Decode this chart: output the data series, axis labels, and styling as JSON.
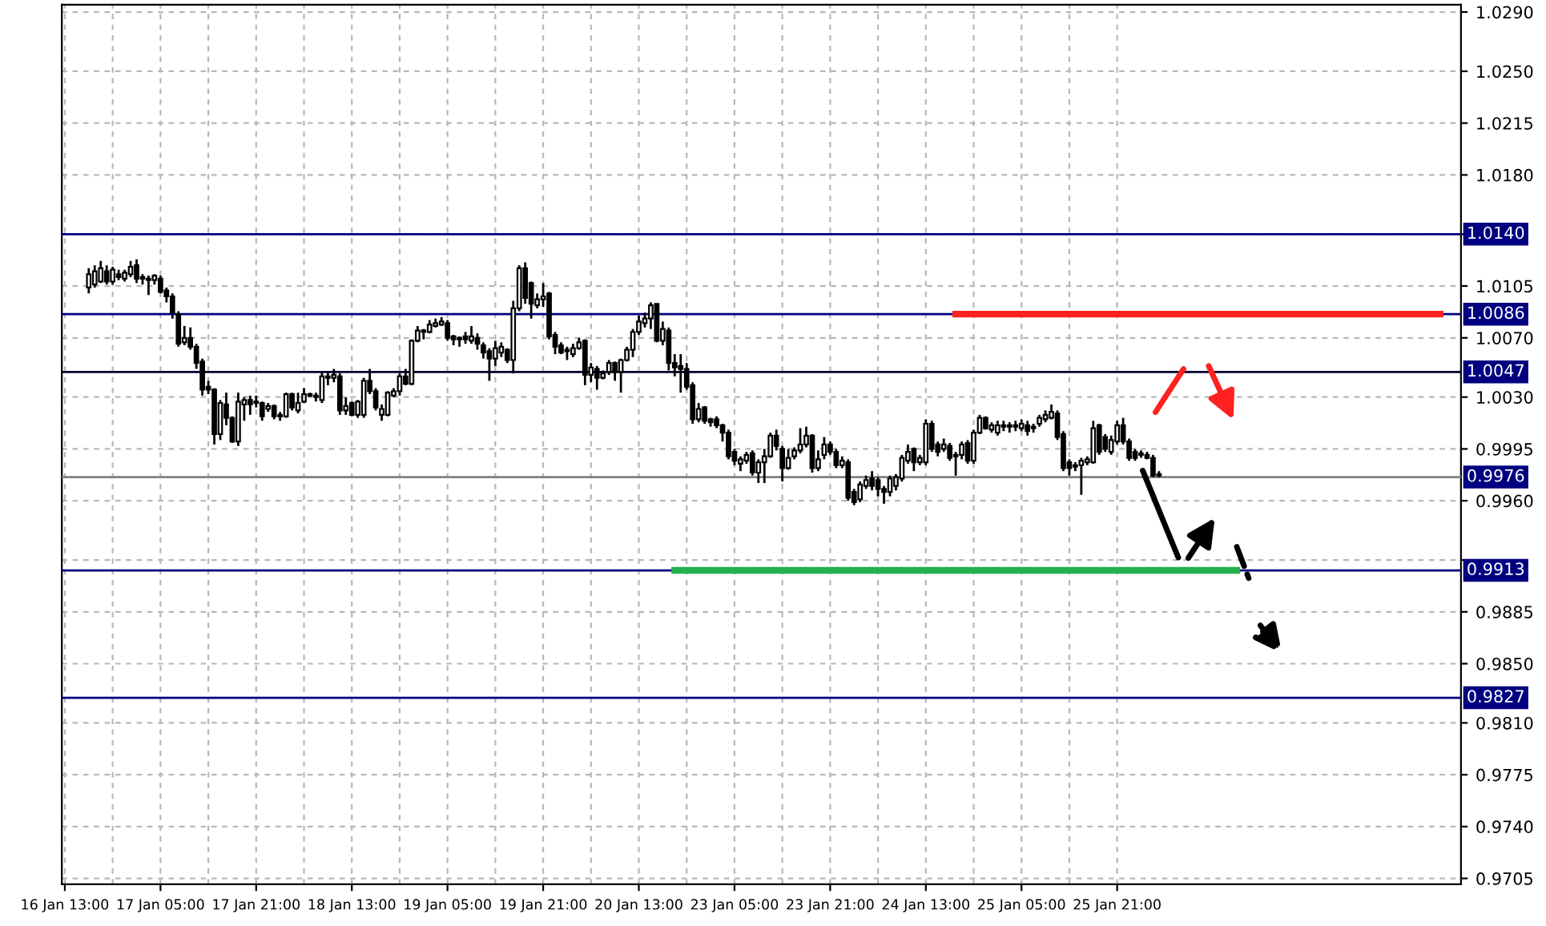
{
  "chart_data": {
    "type": "candlestick",
    "categories": [
      "16 Jan 13:00",
      null,
      null,
      null,
      null,
      null,
      null,
      null,
      null,
      null,
      null,
      null,
      null,
      null,
      null,
      null,
      "17 Jan 05:00",
      null,
      null,
      null,
      null,
      null,
      null,
      null,
      null,
      null,
      null,
      null,
      null,
      null,
      null,
      null,
      "17 Jan 21:00",
      null,
      null,
      null,
      null,
      null,
      null,
      null,
      null,
      null,
      null,
      null,
      null,
      null,
      null,
      null,
      "18 Jan 13:00",
      null,
      null,
      null,
      null,
      null,
      null,
      null,
      null,
      null,
      null,
      null,
      null,
      null,
      null,
      null,
      "19 Jan 05:00",
      null,
      null,
      null,
      null,
      null,
      null,
      null,
      null,
      null,
      null,
      null,
      null,
      null,
      null,
      null,
      "19 Jan 21:00",
      null,
      null,
      null,
      null,
      null,
      null,
      null,
      null,
      null,
      null,
      null,
      null,
      null,
      null,
      null,
      "20 Jan 13:00",
      null,
      null,
      null,
      null,
      null,
      null,
      null,
      null,
      null,
      null,
      null,
      null,
      null,
      null,
      null,
      "23 Jan 05:00",
      null,
      null,
      null,
      null,
      null,
      null,
      null,
      null,
      null,
      null,
      null,
      null,
      null,
      null,
      null,
      "23 Jan 21:00",
      null,
      null,
      null,
      null,
      null,
      null,
      null,
      null,
      null,
      null,
      null,
      null,
      null,
      null,
      null,
      "24 Jan 13:00",
      null,
      null,
      null,
      null,
      null,
      null,
      null,
      null,
      null,
      null,
      null,
      null,
      null,
      null,
      null,
      "25 Jan 05:00",
      null,
      null,
      null,
      null,
      null,
      null,
      null,
      null,
      null,
      null,
      null,
      null,
      null,
      null,
      null,
      "25 Jan 21:00",
      null,
      null,
      null,
      null,
      null,
      null,
      null,
      null,
      null,
      null,
      null,
      null,
      null,
      null,
      null,
      null,
      null,
      null,
      null,
      null,
      null,
      null,
      null,
      null,
      null,
      null,
      null,
      null,
      null,
      null,
      null,
      null,
      null,
      null,
      null,
      null,
      null,
      null,
      null,
      null,
      null,
      null,
      null,
      null,
      null,
      null,
      null,
      null,
      null,
      null,
      null,
      null,
      null,
      null,
      null,
      null,
      null
    ],
    "ohlc": [
      null,
      null,
      null,
      null,
      [
        1.0104,
        1.0117,
        1.01,
        1.0113
      ],
      [
        1.0106,
        1.0119,
        1.0104,
        1.0115
      ],
      [
        1.0108,
        1.0122,
        1.0107,
        1.0117
      ],
      [
        1.0115,
        1.0119,
        1.0106,
        1.0108
      ],
      [
        1.0108,
        1.0118,
        1.0106,
        1.0116
      ],
      [
        1.0113,
        1.0116,
        1.0109,
        1.0111
      ],
      [
        1.011,
        1.0116,
        1.0108,
        1.0114
      ],
      [
        1.0113,
        1.0122,
        1.0111,
        1.0118
      ],
      [
        1.0119,
        1.0123,
        1.0107,
        1.011
      ],
      [
        1.0111,
        1.0113,
        1.0106,
        1.011
      ],
      [
        1.011,
        1.0112,
        1.0099,
        1.0109
      ],
      [
        1.0109,
        1.0113,
        1.0106,
        1.0112
      ],
      [
        1.011,
        1.0112,
        1.01,
        1.0101
      ],
      [
        1.0102,
        1.0104,
        1.0094,
        1.0098
      ],
      [
        1.0098,
        1.01,
        1.0083,
        1.0087
      ],
      [
        1.0086,
        1.0088,
        1.0064,
        1.0066
      ],
      [
        1.0067,
        1.0078,
        1.0065,
        1.007
      ],
      [
        1.007,
        1.0077,
        1.0062,
        1.0064
      ],
      [
        1.0064,
        1.0066,
        1.0049,
        1.0053
      ],
      [
        1.0054,
        1.0056,
        1.0031,
        1.0035
      ],
      [
        1.0037,
        1.0041,
        1.0032,
        1.0035
      ],
      [
        1.0035,
        1.0036,
        0.9998,
        1.0005
      ],
      [
        1.0005,
        1.0028,
        1.0001,
        1.0026
      ],
      [
        1.0025,
        1.0033,
        1.0011,
        1.0016
      ],
      [
        1.0016,
        1.0017,
        0.9999,
        1.0
      ],
      [
        1.0,
        1.0033,
        0.9997,
        1.0027
      ],
      [
        1.0025,
        1.003,
        1.0014,
        1.0028
      ],
      [
        1.0028,
        1.0031,
        1.0018,
        1.0025
      ],
      [
        1.0027,
        1.0031,
        1.0023,
        1.0026
      ],
      [
        1.0026,
        1.0027,
        1.0014,
        1.0017
      ],
      [
        1.0022,
        1.0026,
        1.002,
        1.0024
      ],
      [
        1.0024,
        1.0025,
        1.0015,
        1.0017
      ],
      [
        1.0018,
        1.002,
        1.0014,
        1.0017
      ],
      [
        1.0017,
        1.0033,
        1.0016,
        1.0032
      ],
      [
        1.0032,
        1.0033,
        1.0021,
        1.0023
      ],
      [
        1.0021,
        1.0033,
        1.0019,
        1.0026
      ],
      [
        1.0027,
        1.0036,
        1.0026,
        1.0032
      ],
      [
        1.0032,
        1.0033,
        1.003,
        1.0031
      ],
      [
        1.0031,
        1.0033,
        1.0027,
        1.003
      ],
      [
        1.0028,
        1.0047,
        1.0026,
        1.0044
      ],
      [
        1.0044,
        1.0047,
        1.0038,
        1.0043
      ],
      [
        1.0043,
        1.0049,
        1.004,
        1.0045
      ],
      [
        1.0044,
        1.0046,
        1.0018,
        1.0021
      ],
      [
        1.0021,
        1.003,
        1.0018,
        1.0024
      ],
      [
        1.0026,
        1.0027,
        1.0017,
        1.0018
      ],
      [
        1.0018,
        1.0028,
        1.0016,
        1.0027
      ],
      [
        1.0018,
        1.0043,
        1.0016,
        1.0041
      ],
      [
        1.0041,
        1.0049,
        1.0032,
        1.0034
      ],
      [
        1.0034,
        1.0036,
        1.0021,
        1.0023
      ],
      [
        1.0018,
        1.0025,
        1.0014,
        1.0022
      ],
      [
        1.0018,
        1.0034,
        1.0017,
        1.0033
      ],
      [
        1.0031,
        1.0036,
        1.003,
        1.0034
      ],
      [
        1.0034,
        1.0046,
        1.0031,
        1.0044
      ],
      [
        1.0044,
        1.0049,
        1.0038,
        1.0039
      ],
      [
        1.0039,
        1.0069,
        1.0038,
        1.0068
      ],
      [
        1.0068,
        1.0078,
        1.0067,
        1.0075
      ],
      [
        1.0075,
        1.0076,
        1.0069,
        1.0074
      ],
      [
        1.0074,
        1.0082,
        1.0073,
        1.0079
      ],
      [
        1.0078,
        1.0083,
        1.0077,
        1.008
      ],
      [
        1.0079,
        1.0084,
        1.0078,
        1.0081
      ],
      [
        1.008,
        1.0082,
        1.0068,
        1.007
      ],
      [
        1.0071,
        1.0072,
        1.0065,
        1.0069
      ],
      [
        1.0069,
        1.0071,
        1.0064,
        1.007
      ],
      [
        1.0071,
        1.0074,
        1.0066,
        1.0069
      ],
      [
        1.0068,
        1.0078,
        1.0066,
        1.0071
      ],
      [
        1.007,
        1.0073,
        1.0062,
        1.0066
      ],
      [
        1.0065,
        1.0067,
        1.0056,
        1.006
      ],
      [
        1.0061,
        1.0063,
        1.0041,
        1.0056
      ],
      [
        1.0056,
        1.0068,
        1.0051,
        1.0063
      ],
      [
        1.006,
        1.0067,
        1.0057,
        1.0064
      ],
      [
        1.0062,
        1.0063,
        1.0053,
        1.0055
      ],
      [
        1.0055,
        1.0095,
        1.0046,
        1.009
      ],
      [
        1.009,
        1.0119,
        1.0088,
        1.0117
      ],
      [
        1.0117,
        1.0121,
        1.0093,
        1.0097
      ],
      [
        1.0107,
        1.0108,
        1.0083,
        1.0093
      ],
      [
        1.0092,
        1.01,
        1.009,
        1.0096
      ],
      [
        1.0096,
        1.0107,
        1.0091,
        1.0098
      ],
      [
        1.01,
        1.0101,
        1.0069,
        1.0071
      ],
      [
        1.0072,
        1.0074,
        1.0059,
        1.0064
      ],
      [
        1.0065,
        1.0067,
        1.0059,
        1.006
      ],
      [
        1.0061,
        1.0064,
        1.0055,
        1.0062
      ],
      [
        1.0059,
        1.0066,
        1.0057,
        1.0063
      ],
      [
        1.0063,
        1.007,
        1.0062,
        1.0067
      ],
      [
        1.0068,
        1.0069,
        1.0038,
        1.0045
      ],
      [
        1.0045,
        1.0053,
        1.004,
        1.005
      ],
      [
        1.0049,
        1.0051,
        1.0035,
        1.0043
      ],
      [
        1.0043,
        1.0048,
        1.0042,
        1.0046
      ],
      [
        1.0047,
        1.0055,
        1.0045,
        1.0053
      ],
      [
        1.0053,
        1.0054,
        1.0041,
        1.0047
      ],
      [
        1.0047,
        1.0056,
        1.0033,
        1.0055
      ],
      [
        1.0055,
        1.0064,
        1.0054,
        1.0062
      ],
      [
        1.0062,
        1.0076,
        1.0057,
        1.0074
      ],
      [
        1.0074,
        1.0085,
        1.0072,
        1.0081
      ],
      [
        1.008,
        1.0087,
        1.0077,
        1.0083
      ],
      [
        1.0083,
        1.0094,
        1.0076,
        1.0092
      ],
      [
        1.0093,
        1.0093,
        1.0067,
        1.0068
      ],
      [
        1.0068,
        1.0081,
        1.0065,
        1.0076
      ],
      [
        1.0075,
        1.0077,
        1.0048,
        1.0053
      ],
      [
        1.0053,
        1.0059,
        1.0044,
        1.005
      ],
      [
        1.0051,
        1.0059,
        1.0033,
        1.0049
      ],
      [
        1.0049,
        1.0053,
        1.0035,
        1.0037
      ],
      [
        1.0038,
        1.004,
        1.0012,
        1.0015
      ],
      [
        1.0015,
        1.0026,
        1.0013,
        1.0022
      ],
      [
        1.0023,
        1.0024,
        1.0012,
        1.0014
      ],
      [
        1.0015,
        1.0016,
        1.001,
        1.0013
      ],
      [
        1.0015,
        1.0017,
        1.0009,
        1.0011
      ],
      [
        1.0011,
        1.0012,
        1.0,
        1.0006
      ],
      [
        1.0006,
        1.0008,
        0.9988,
        0.999
      ],
      [
        0.9993,
        0.9995,
        0.9984,
        0.9987
      ],
      [
        0.9985,
        0.999,
        0.998,
        0.9988
      ],
      [
        0.9987,
        0.9993,
        0.9985,
        0.9991
      ],
      [
        0.9992,
        0.9994,
        0.9977,
        0.9979
      ],
      [
        0.9979,
        0.9988,
        0.9972,
        0.9986
      ],
      [
        0.9986,
        0.9995,
        0.9972,
        0.999
      ],
      [
        0.999,
        1.0006,
        0.9989,
        1.0004
      ],
      [
        1.0004,
        1.0008,
        0.9994,
        0.9997
      ],
      [
        0.9995,
        0.9997,
        0.9973,
        0.9982
      ],
      [
        0.9982,
        0.9995,
        0.9981,
        0.9989
      ],
      [
        0.999,
        0.9996,
        0.9988,
        0.9994
      ],
      [
        0.9994,
        1.0009,
        0.9992,
        0.9998
      ],
      [
        0.9998,
        1.001,
        0.9996,
        1.0004
      ],
      [
        1.0004,
        1.0005,
        0.9979,
        0.9982
      ],
      [
        0.9982,
        0.9994,
        0.998,
        0.9988
      ],
      [
        0.9991,
        1.0003,
        0.9988,
        0.9998
      ],
      [
        0.9998,
        1.0,
        0.9991,
        0.9993
      ],
      [
        0.9993,
        0.9995,
        0.9982,
        0.9984
      ],
      [
        0.9984,
        0.999,
        0.9982,
        0.9987
      ],
      [
        0.9986,
        0.9988,
        0.996,
        0.9962
      ],
      [
        0.9966,
        0.9968,
        0.9957,
        0.9959
      ],
      [
        0.9961,
        0.9973,
        0.9959,
        0.9971
      ],
      [
        0.997,
        0.9977,
        0.9968,
        0.9974
      ],
      [
        0.9975,
        0.998,
        0.9967,
        0.997
      ],
      [
        0.9974,
        0.9976,
        0.9963,
        0.9968
      ],
      [
        0.9968,
        0.997,
        0.9958,
        0.9966
      ],
      [
        0.9966,
        0.9977,
        0.9963,
        0.9975
      ],
      [
        0.997,
        0.9978,
        0.9967,
        0.9976
      ],
      [
        0.9975,
        0.9991,
        0.9973,
        0.9989
      ],
      [
        0.9987,
        0.9998,
        0.9985,
        0.9993
      ],
      [
        0.9995,
        0.9996,
        0.998,
        0.9986
      ],
      [
        0.9986,
        0.9991,
        0.9984,
        0.9989
      ],
      [
        0.9986,
        1.0015,
        0.9984,
        1.0012
      ],
      [
        1.0012,
        1.0014,
        0.9993,
        0.9995
      ],
      [
        0.9998,
        1.0,
        0.999,
        0.9993
      ],
      [
        0.9995,
        1.0002,
        0.9993,
        0.9998
      ],
      [
        0.9997,
        0.9999,
        0.9987,
        0.9989
      ],
      [
        0.9991,
        0.9993,
        0.9977,
        0.999
      ],
      [
        0.9991,
        1.0,
        0.9988,
        0.9998
      ],
      [
        0.9999,
        1.0001,
        0.9985,
        0.9987
      ],
      [
        0.9987,
        1.0008,
        0.9985,
        1.0006
      ],
      [
        1.0006,
        1.0018,
        1.0005,
        1.0016
      ],
      [
        1.0016,
        1.0017,
        1.0008,
        1.0009
      ],
      [
        1.0008,
        1.0013,
        1.0006,
        1.0011
      ],
      [
        1.0006,
        1.0014,
        1.0004,
        1.0011
      ],
      [
        1.0011,
        1.0014,
        1.0007,
        1.001
      ],
      [
        1.0011,
        1.0013,
        1.0006,
        1.001
      ],
      [
        1.001,
        1.0014,
        1.0007,
        1.0011
      ],
      [
        1.0009,
        1.0015,
        1.0007,
        1.0012
      ],
      [
        1.0011,
        1.0014,
        1.0004,
        1.0007
      ],
      [
        1.0009,
        1.0012,
        1.0006,
        1.001
      ],
      [
        1.0012,
        1.0018,
        1.001,
        1.0016
      ],
      [
        1.0015,
        1.0021,
        1.0013,
        1.0018
      ],
      [
        1.0016,
        1.0025,
        1.0015,
        1.002
      ],
      [
        1.0019,
        1.0021,
        1.0001,
        1.0003
      ],
      [
        1.0005,
        1.0007,
        0.998,
        0.9982
      ],
      [
        0.9986,
        0.9988,
        0.9977,
        0.9982
      ],
      [
        0.9984,
        0.9986,
        0.998,
        0.9983
      ],
      [
        0.9984,
        0.9989,
        0.9964,
        0.9987
      ],
      [
        0.9986,
        0.999,
        0.9984,
        0.9988
      ],
      [
        0.9986,
        1.0014,
        0.9985,
        1.0009
      ],
      [
        1.0011,
        1.0012,
        0.9991,
        0.9993
      ],
      [
        1.0003,
        1.0005,
        0.9993,
        0.9995
      ],
      [
        0.9993,
        1.0004,
        0.9991,
        1.0001
      ],
      [
        1.0,
        1.0014,
        0.9998,
        1.0011
      ],
      [
        1.0011,
        1.0016,
        0.9998,
        1.0
      ],
      [
        1.0,
        1.0002,
        0.9987,
        0.9989
      ],
      [
        0.9993,
        0.9995,
        0.9987,
        0.9989
      ],
      [
        0.9992,
        0.9994,
        0.9989,
        0.9991
      ],
      [
        0.9991,
        0.9993,
        0.9988,
        0.9989
      ],
      [
        0.9989,
        0.9991,
        0.9976,
        0.9977
      ],
      [
        0.9978,
        0.998,
        0.9976,
        0.9977
      ],
      null,
      null,
      null,
      null,
      null,
      null,
      null,
      null,
      null,
      null,
      null,
      null,
      null,
      null,
      null,
      null,
      null,
      null,
      null,
      null,
      null,
      null,
      null,
      null,
      null,
      null,
      null,
      null,
      null,
      null,
      null,
      null,
      null,
      null,
      null,
      null,
      null,
      null,
      null,
      null,
      null,
      null,
      null,
      null,
      null,
      null,
      null,
      null,
      null,
      null
    ],
    "series": [
      {
        "type": "line",
        "color": "#ff2020",
        "values": [
          null,
          null,
          null,
          null,
          null,
          null,
          null,
          null,
          null,
          null,
          null,
          null,
          null,
          null,
          null,
          null,
          null,
          null,
          null,
          null,
          null,
          null,
          null,
          null,
          null,
          null,
          null,
          null,
          null,
          null,
          null,
          null,
          null,
          null,
          null,
          null,
          null,
          null,
          null,
          null,
          null,
          null,
          null,
          null,
          null,
          null,
          null,
          null,
          null,
          null,
          null,
          null,
          null,
          null,
          null,
          null,
          null,
          null,
          null,
          null,
          null,
          null,
          null,
          null,
          null,
          null,
          null,
          null,
          null,
          null,
          null,
          null,
          null,
          null,
          null,
          null,
          null,
          null,
          null,
          null,
          null,
          null,
          null,
          null,
          null,
          null,
          null,
          null,
          null,
          null,
          null,
          null,
          null,
          null,
          null,
          null,
          null,
          null,
          null,
          null,
          null,
          null,
          null,
          null,
          null,
          null,
          null,
          null,
          null,
          null,
          null,
          null,
          null,
          null,
          null,
          null,
          null,
          null,
          null,
          null,
          null,
          null,
          null,
          null,
          null,
          null,
          null,
          null,
          null,
          null,
          null,
          null,
          null,
          null,
          null,
          null,
          null,
          null,
          null,
          null,
          null,
          null,
          null,
          null,
          null,
          null,
          null,
          null,
          null,
          1.0086,
          1.0086,
          1.0086,
          1.0086,
          1.0086,
          1.0086,
          1.0086,
          1.0086,
          1.0086,
          1.0086,
          1.0086,
          1.0086,
          1.0086,
          1.0086,
          1.0086,
          1.0086,
          1.0086,
          1.0086,
          1.0086,
          1.0086,
          1.0086,
          1.0086,
          1.0086,
          1.0086,
          1.0086,
          1.0086,
          1.0086,
          1.0086,
          1.0086,
          1.0086,
          1.0086,
          1.0086,
          1.0086,
          1.0086,
          1.0086,
          1.0086,
          1.0086,
          1.0086,
          1.0086,
          1.0086,
          1.0086,
          1.0086,
          1.0086,
          1.0086,
          1.0086,
          1.0086,
          1.0086,
          1.0086,
          1.0086,
          1.0086,
          1.0086,
          1.0086,
          1.0086,
          1.0086,
          1.0086,
          1.0086,
          1.0086,
          1.0086,
          1.0086,
          1.0086,
          1.0086,
          1.0086,
          1.0086,
          1.0086,
          1.0086,
          1.0086,
          1.0086,
          1.0086,
          1.0086,
          1.0086,
          1.0086,
          1.0086,
          1.0086,
          1.0086,
          1.0086,
          1.0086,
          1.0086,
          1.0086,
          1.0086,
          1.0086,
          1.0086,
          1.0086,
          null,
          null,
          null
        ]
      },
      {
        "type": "line",
        "color": "#22b14c",
        "values": [
          null,
          null,
          null,
          null,
          null,
          null,
          null,
          null,
          null,
          null,
          null,
          null,
          null,
          null,
          null,
          null,
          null,
          null,
          null,
          null,
          null,
          null,
          null,
          null,
          null,
          null,
          null,
          null,
          null,
          null,
          null,
          null,
          null,
          null,
          null,
          null,
          null,
          null,
          null,
          null,
          null,
          null,
          null,
          null,
          null,
          null,
          null,
          null,
          null,
          null,
          null,
          null,
          null,
          null,
          null,
          null,
          null,
          null,
          null,
          null,
          null,
          null,
          null,
          null,
          null,
          null,
          null,
          null,
          null,
          null,
          null,
          null,
          null,
          null,
          null,
          null,
          null,
          null,
          null,
          null,
          null,
          null,
          null,
          null,
          null,
          null,
          null,
          null,
          null,
          null,
          null,
          null,
          null,
          null,
          null,
          null,
          null,
          null,
          null,
          null,
          null,
          null,
          0.9913,
          0.9913,
          0.9913,
          0.9913,
          0.9913,
          0.9913,
          0.9913,
          0.9913,
          0.9913,
          0.9913,
          0.9913,
          0.9913,
          0.9913,
          0.9913,
          0.9913,
          0.9913,
          0.9913,
          0.9913,
          0.9913,
          0.9913,
          0.9913,
          0.9913,
          0.9913,
          0.9913,
          0.9913,
          0.9913,
          0.9913,
          0.9913,
          0.9913,
          0.9913,
          0.9913,
          0.9913,
          0.9913,
          0.9913,
          0.9913,
          0.9913,
          0.9913,
          0.9913,
          0.9913,
          0.9913,
          0.9913,
          0.9913,
          0.9913,
          0.9913,
          0.9913,
          0.9913,
          0.9913,
          0.9913,
          0.9913,
          0.9913,
          0.9913,
          0.9913,
          0.9913,
          0.9913,
          0.9913,
          0.9913,
          0.9913,
          0.9913,
          0.9913,
          0.9913,
          0.9913,
          0.9913,
          0.9913,
          0.9913,
          0.9913,
          0.9913,
          0.9913,
          0.9913,
          0.9913,
          0.9913,
          0.9913,
          0.9913,
          0.9913,
          0.9913,
          0.9913,
          0.9913,
          0.9913,
          0.9913,
          0.9913,
          0.9913,
          0.9913,
          0.9913,
          0.9913,
          0.9913,
          0.9913,
          0.9913,
          0.9913,
          0.9913,
          0.9913,
          0.9913,
          0.9913,
          0.9913,
          0.9913,
          0.9913,
          0.9913,
          null,
          null,
          null,
          null,
          null,
          null,
          null,
          null,
          null,
          null,
          null,
          null,
          null,
          null,
          null,
          null,
          null,
          null,
          null,
          null,
          null,
          null,
          null,
          null,
          null,
          null,
          null,
          null,
          null,
          null,
          null,
          null,
          null,
          null,
          null,
          null,
          null
        ]
      }
    ],
    "ref_lines": [
      {
        "axis": "y",
        "value": 1.014,
        "label": "1.0140",
        "color": "#000080"
      },
      {
        "axis": "y",
        "value": 1.0086,
        "label": "1.0086",
        "color": "#000080"
      },
      {
        "axis": "y",
        "value": 1.0047,
        "label": "1.0047",
        "color": "#000033"
      },
      {
        "axis": "y",
        "value": 0.9976,
        "label": "0.9976",
        "color": "#808080"
      },
      {
        "axis": "y",
        "value": 0.9913,
        "label": "0.9913",
        "color": "#000080"
      },
      {
        "axis": "y",
        "value": 0.9827,
        "label": "0.9827",
        "color": "#000080"
      }
    ],
    "ylim": [
      0.9701,
      1.0295
    ],
    "yticks": [
      {
        "value": 1.029,
        "label": "1.0290"
      },
      {
        "value": 1.025,
        "label": "1.0250"
      },
      1.0215,
      {
        "value": 1.018,
        "label": "1.0180"
      },
      {
        "value": 1.014,
        "label": null
      },
      1.0105,
      {
        "value": 1.007,
        "label": "1.0070"
      },
      {
        "value": 1.003,
        "label": "1.0030"
      },
      0.9995,
      {
        "value": 0.996,
        "label": "0.9960"
      },
      {
        "value": 0.992,
        "label": null
      },
      0.9885,
      {
        "value": 0.985,
        "label": "0.9850"
      },
      {
        "value": 0.981,
        "label": "0.9810"
      },
      0.9775,
      {
        "value": 0.974,
        "label": "0.9740"
      },
      0.9705
    ],
    "grid": true
  }
}
